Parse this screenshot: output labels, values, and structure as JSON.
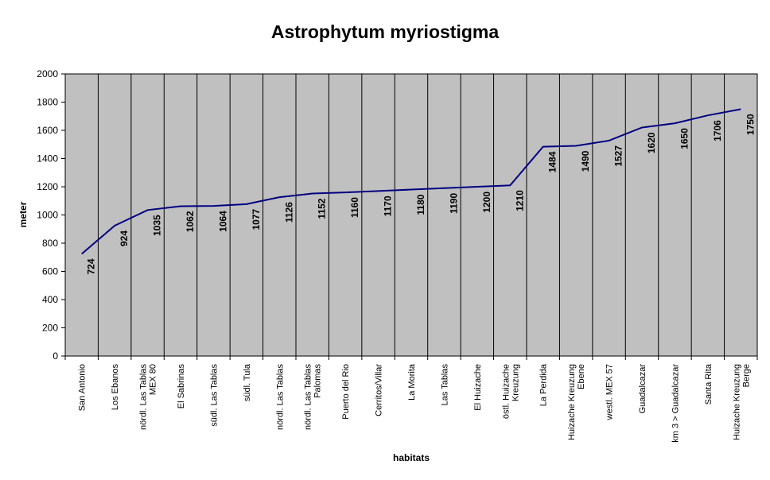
{
  "chart_data": {
    "type": "line",
    "title": "Astrophytum myriostigma",
    "xlabel": "habitats",
    "ylabel": "meter",
    "ylim": [
      0,
      2000
    ],
    "y_ticks": [
      0,
      200,
      400,
      600,
      800,
      1000,
      1200,
      1400,
      1600,
      1800,
      2000
    ],
    "grid": "vertical category separators",
    "legend": "none",
    "categories": [
      "San Antonio",
      "Los Ebanos",
      "nördl. Las Tablas MEX 80",
      "El Sabrinas",
      "südl. Las Tablas",
      "südl. Tula",
      "nördl. Las Tablas",
      "nördl. Las Tablas Palomas",
      "Puerto del Rio",
      "Cerritos/Villar",
      "La Morita",
      "Las Tablas",
      "El Huizache",
      "östl. Huizache Kreuzung",
      "La Perdida",
      "Huizache Kreuzung Ebene",
      "westl. MEX 57",
      "Guadalcazar",
      "km 3 > Guadalcazar",
      "Santa Rita",
      "Huizache Kreuzung Berge"
    ],
    "series": [
      {
        "values": [
          724,
          924,
          1035,
          1062,
          1064,
          1077,
          1126,
          1152,
          1160,
          1170,
          1180,
          1190,
          1200,
          1210,
          1484,
          1490,
          1527,
          1620,
          1650,
          1706,
          1750
        ],
        "color": "#000080"
      }
    ],
    "plot_background": "#c0c0c0"
  }
}
